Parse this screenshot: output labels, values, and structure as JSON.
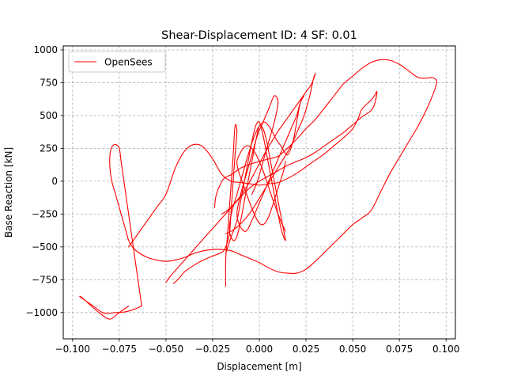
{
  "chart_data": {
    "type": "line",
    "title": "Shear-Displacement ID: 4  SF: 0.01",
    "xlabel": "Displacement [m]",
    "ylabel": "Base Reaction [kN]",
    "xlim": [
      -0.105,
      0.105
    ],
    "ylim": [
      -1200,
      1030
    ],
    "xticks": [
      -0.1,
      -0.075,
      -0.05,
      -0.025,
      0.0,
      0.025,
      0.05,
      0.075,
      0.1
    ],
    "xtick_labels": [
      "−0.100",
      "−0.075",
      "−0.050",
      "−0.025",
      "0.000",
      "0.025",
      "0.050",
      "0.075",
      "0.100"
    ],
    "yticks": [
      -1000,
      -750,
      -500,
      -250,
      0,
      250,
      500,
      750,
      1000
    ],
    "ytick_labels": [
      "−1000",
      "−750",
      "−500",
      "−250",
      "0",
      "250",
      "500",
      "750",
      "1000"
    ],
    "grid": true,
    "grid_style": "dashed",
    "legend_position": "upper-left",
    "colors": {
      "series": "#ff0000",
      "grid": "#b0b0b0"
    },
    "series": [
      {
        "name": "OpenSees",
        "color": "#ff0000",
        "segments": [
          {
            "x": [
              -0.024,
              -0.023,
              -0.02,
              -0.018,
              -0.015,
              -0.012,
              -0.01,
              -0.005,
              0.0,
              0.005,
              0.01,
              0.015,
              0.02,
              0.025,
              0.03,
              0.035,
              0.04,
              0.045,
              0.05,
              0.055,
              0.06,
              0.065,
              0.07,
              0.075,
              0.08,
              0.085,
              0.09,
              0.092,
              0.094,
              0.095,
              0.094,
              0.09,
              0.085,
              0.08,
              0.075,
              0.07,
              0.065,
              0.06,
              0.055,
              0.05,
              0.045,
              0.04,
              0.035,
              0.03,
              0.025,
              0.02,
              0.015,
              0.01,
              0.005,
              0.0,
              -0.005,
              -0.01,
              -0.015,
              -0.02,
              -0.025,
              -0.03,
              -0.035,
              -0.04,
              -0.045,
              -0.05,
              -0.055,
              -0.06,
              -0.065,
              -0.068,
              -0.07,
              -0.071
            ],
            "y": [
              -200,
              -100,
              0,
              30,
              50,
              80,
              100,
              130,
              150,
              170,
              190,
              250,
              320,
              400,
              470,
              560,
              650,
              740,
              800,
              860,
              905,
              925,
              920,
              890,
              840,
              790,
              785,
              790,
              780,
              760,
              700,
              560,
              420,
              300,
              180,
              60,
              -80,
              -220,
              -280,
              -330,
              -400,
              -470,
              -540,
              -610,
              -670,
              -700,
              -700,
              -690,
              -660,
              -620,
              -590,
              -560,
              -530,
              -520,
              -520,
              -530,
              -550,
              -580,
              -600,
              -610,
              -600,
              -580,
              -540,
              -500,
              -450,
              -400
            ]
          },
          {
            "x": [
              -0.071,
              -0.073,
              -0.075,
              -0.077,
              -0.079,
              -0.08,
              -0.08,
              -0.079,
              -0.077,
              -0.075,
              -0.074,
              -0.073,
              -0.072,
              -0.071,
              -0.07,
              -0.069,
              -0.068,
              -0.067,
              -0.066,
              -0.065,
              -0.064,
              -0.063
            ],
            "y": [
              -400,
              -300,
              -200,
              -100,
              0,
              100,
              200,
              260,
              280,
              250,
              150,
              50,
              -50,
              -150,
              -250,
              -350,
              -450,
              -550,
              -650,
              -750,
              -850,
              -950
            ]
          },
          {
            "x": [
              -0.063,
              -0.067,
              -0.072,
              -0.077,
              -0.08,
              -0.084,
              -0.088,
              -0.092,
              -0.096,
              -0.095,
              -0.09,
              -0.085,
              -0.08,
              -0.075,
              -0.07
            ],
            "y": [
              -950,
              -975,
              -995,
              -1000,
              -1005,
              -1000,
              -960,
              -920,
              -880,
              -885,
              -950,
              -1010,
              -1050,
              -1000,
              -950
            ]
          },
          {
            "x": [
              -0.07,
              -0.065,
              -0.06,
              -0.055,
              -0.05,
              -0.045,
              -0.04,
              -0.035,
              -0.03,
              -0.025,
              -0.02,
              -0.015,
              -0.01,
              -0.005,
              0.0,
              0.005,
              0.01,
              0.015,
              0.02,
              0.025,
              0.03,
              0.035,
              0.04,
              0.045,
              0.05,
              0.053,
              0.055,
              0.06,
              0.062,
              0.063,
              0.062,
              0.06,
              0.055,
              0.05,
              0.045,
              0.04,
              0.035,
              0.03,
              0.025,
              0.02,
              0.015,
              0.01,
              0.005,
              0.0,
              -0.005,
              -0.01,
              -0.015,
              -0.02,
              -0.025,
              -0.03,
              -0.035,
              -0.04,
              -0.045,
              -0.048,
              -0.05
            ],
            "y": [
              -500,
              -400,
              -300,
              -200,
              -100,
              100,
              230,
              280,
              260,
              170,
              50,
              0,
              -10,
              -20,
              -30,
              -20,
              -10,
              20,
              60,
              110,
              160,
              210,
              270,
              330,
              400,
              480,
              550,
              620,
              660,
              680,
              600,
              540,
              490,
              430,
              370,
              320,
              270,
              220,
              180,
              150,
              120,
              80,
              40,
              0,
              -50,
              -120,
              -200,
              -280,
              -360,
              -440,
              -520,
              -600,
              -680,
              -730,
              -770
            ]
          },
          {
            "x": [
              -0.046,
              -0.043,
              -0.04,
              -0.035,
              -0.03,
              -0.025,
              -0.02,
              -0.018,
              -0.016,
              -0.015,
              -0.014,
              -0.013,
              -0.012,
              -0.013,
              -0.014,
              -0.015,
              -0.016,
              -0.017,
              -0.018,
              -0.018
            ],
            "y": [
              -780,
              -740,
              -690,
              -640,
              -600,
              -570,
              -540,
              -500,
              -400,
              -200,
              0,
              200,
              380,
              420,
              200,
              0,
              -200,
              -400,
              -600,
              -800
            ]
          },
          {
            "x": [
              -0.018,
              -0.015,
              -0.012,
              -0.01,
              -0.008,
              -0.006,
              -0.004,
              -0.002,
              0.0,
              0.002,
              0.004,
              0.006,
              0.008,
              0.01,
              0.012,
              0.014,
              0.012,
              0.01,
              0.008,
              0.006,
              0.004,
              0.002,
              0.0,
              -0.002,
              -0.004,
              -0.006,
              -0.008,
              -0.01,
              -0.012,
              -0.014,
              -0.016,
              -0.015,
              -0.012,
              -0.009,
              -0.006,
              -0.003,
              0.0,
              0.003,
              0.006,
              0.009,
              0.012,
              0.015,
              0.018,
              0.02,
              0.022,
              0.024,
              0.022,
              0.02,
              0.017,
              0.014,
              0.011,
              0.008,
              0.005,
              0.002,
              -0.001,
              -0.004,
              -0.007,
              -0.01,
              -0.012,
              -0.01,
              -0.007,
              -0.004,
              -0.001,
              0.002,
              0.005,
              0.008,
              0.01,
              0.008,
              0.005,
              0.002,
              -0.001,
              -0.004
            ],
            "y": [
              -550,
              -420,
              -300,
              -150,
              0,
              150,
              300,
              420,
              450,
              350,
              200,
              50,
              -100,
              -250,
              -380,
              -450,
              -300,
              -150,
              0,
              150,
              300,
              400,
              420,
              300,
              150,
              0,
              -150,
              -300,
              -420,
              -450,
              -380,
              -250,
              -100,
              50,
              200,
              330,
              420,
              450,
              400,
              320,
              260,
              200,
              300,
              450,
              600,
              650,
              600,
              500,
              400,
              300,
              200,
              100,
              0,
              -100,
              -200,
              -300,
              -380,
              -350,
              -250,
              -100,
              50,
              200,
              350,
              450,
              550,
              650,
              600,
              450,
              300,
              150,
              0,
              -100
            ]
          },
          {
            "x": [
              -0.02,
              -0.017,
              -0.014,
              -0.011,
              -0.008,
              -0.005,
              -0.002,
              0.001,
              0.004,
              0.007,
              0.01,
              0.013,
              0.016,
              0.019,
              0.022,
              0.025,
              0.028,
              0.03,
              0.029,
              0.027,
              0.024,
              0.021,
              0.018,
              0.015,
              0.012,
              0.009,
              0.006,
              0.003,
              0.0,
              -0.003,
              -0.006,
              -0.009,
              -0.012,
              -0.015,
              -0.018
            ],
            "y": [
              -250,
              -220,
              -180,
              -130,
              -70,
              0,
              80,
              160,
              240,
              310,
              380,
              440,
              500,
              560,
              620,
              680,
              740,
              820,
              780,
              650,
              500,
              400,
              300,
              220,
              150,
              80,
              10,
              -60,
              -130,
              -200,
              -260,
              -310,
              -350,
              -380,
              -400
            ]
          },
          {
            "x": [
              0.014,
              0.012,
              0.01,
              0.008,
              0.006,
              0.004,
              0.002,
              0.0,
              -0.002,
              -0.004,
              -0.006,
              -0.008,
              -0.01,
              -0.012,
              -0.011,
              -0.009,
              -0.007,
              -0.005,
              -0.003,
              -0.001,
              0.001,
              0.003,
              0.005,
              0.007,
              0.009,
              0.011,
              0.013,
              0.014
            ],
            "y": [
              -380,
              -320,
              -250,
              -170,
              -90,
              0,
              80,
              150,
              210,
              250,
              270,
              260,
              220,
              150,
              70,
              -10,
              -90,
              -170,
              -240,
              -300,
              -330,
              -320,
              -270,
              -190,
              -100,
              -10,
              80,
              150
            ]
          }
        ]
      }
    ]
  }
}
